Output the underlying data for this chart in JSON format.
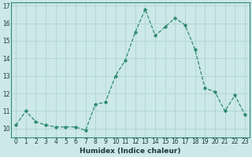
{
  "x": [
    0,
    1,
    2,
    3,
    4,
    5,
    6,
    7,
    8,
    9,
    10,
    11,
    12,
    13,
    14,
    15,
    16,
    17,
    18,
    19,
    20,
    21,
    22,
    23
  ],
  "y": [
    10.2,
    11.0,
    10.4,
    10.2,
    10.1,
    10.1,
    10.1,
    9.9,
    11.4,
    11.5,
    13.0,
    13.9,
    15.5,
    16.8,
    15.3,
    15.8,
    16.3,
    15.9,
    14.5,
    12.3,
    12.1,
    11.0,
    11.9,
    10.8
  ],
  "xlabel": "Humidex (Indice chaleur)",
  "xlim": [
    -0.5,
    23.5
  ],
  "ylim": [
    9.5,
    17.2
  ],
  "yticks": [
    10,
    11,
    12,
    13,
    14,
    15,
    16,
    17
  ],
  "xticks": [
    0,
    1,
    2,
    3,
    4,
    5,
    6,
    7,
    8,
    9,
    10,
    11,
    12,
    13,
    14,
    15,
    16,
    17,
    18,
    19,
    20,
    21,
    22,
    23
  ],
  "line_color": "#2e8b6e",
  "marker": "D",
  "marker_size": 1.8,
  "bg_color": "#cce8e8",
  "grid_color": "#aacfcf",
  "xlabel_fontsize": 6.5,
  "tick_fontsize": 5.5
}
